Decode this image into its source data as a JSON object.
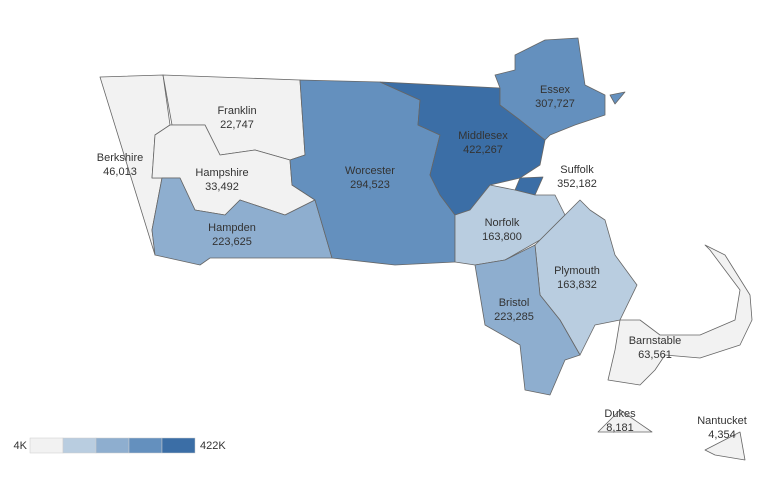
{
  "chart_data": {
    "type": "choropleth",
    "categories": [
      "Berkshire",
      "Franklin",
      "Hampshire",
      "Hampden",
      "Worcester",
      "Middlesex",
      "Essex",
      "Suffolk",
      "Norfolk",
      "Plymouth",
      "Bristol",
      "Barnstable",
      "Dukes",
      "Nantucket"
    ],
    "values": [
      46013,
      22747,
      33492,
      223625,
      294523,
      422267,
      307727,
      352182,
      163800,
      163832,
      223285,
      63561,
      8181,
      4354
    ],
    "value_labels": [
      "46,013",
      "22,747",
      "33,492",
      "223,625",
      "294,523",
      "422,267",
      "307,727",
      "352,182",
      "163,800",
      "163,832",
      "223,285",
      "63,561",
      "8,181",
      "4,354"
    ],
    "colorscale": {
      "colors": [
        "#f2f2f2",
        "#b9cde0",
        "#8eaecf",
        "#6490be",
        "#3b6ea6"
      ],
      "ticks": [
        {
          "value": 4000,
          "label": "4K"
        },
        {
          "value": 422000,
          "label": "422K"
        }
      ]
    }
  }
}
